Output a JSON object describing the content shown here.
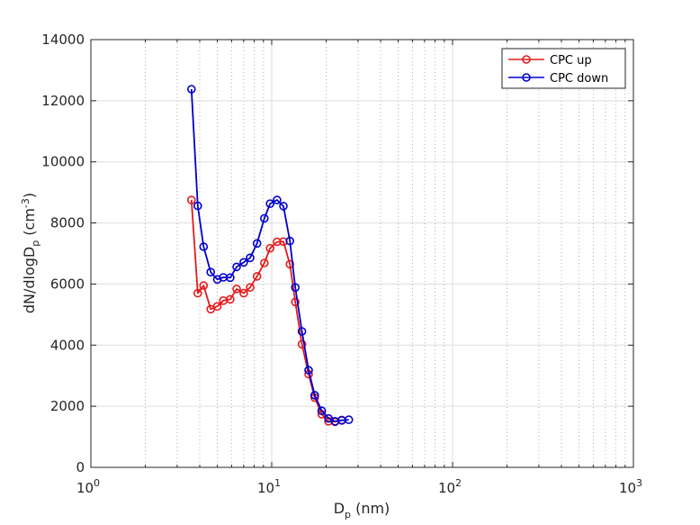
{
  "chart_data": {
    "type": "line",
    "x_scale": "log",
    "xlim": [
      1,
      1000
    ],
    "ylim": [
      0,
      14000
    ],
    "grid": true,
    "legend_position": "top-right",
    "xlabel": {
      "main": "D",
      "sub": "p",
      "tail": " (nm)"
    },
    "ylabel": {
      "main": "dN/dlogD",
      "sub": "p",
      "mid": "  (cm",
      "sup": "-3",
      "tail": ")"
    },
    "y_ticks": [
      {
        "value": 0,
        "label": "0"
      },
      {
        "value": 2000,
        "label": "2000"
      },
      {
        "value": 4000,
        "label": "4000"
      },
      {
        "value": 6000,
        "label": "6000"
      },
      {
        "value": 8000,
        "label": "8000"
      },
      {
        "value": 10000,
        "label": "10000"
      },
      {
        "value": 12000,
        "label": "12000"
      },
      {
        "value": 14000,
        "label": "14000"
      }
    ],
    "x_ticks": [
      {
        "value": 1,
        "base": "10",
        "exp": "0"
      },
      {
        "value": 10,
        "base": "10",
        "exp": "1"
      },
      {
        "value": 100,
        "base": "10",
        "exp": "2"
      },
      {
        "value": 1000,
        "base": "10",
        "exp": "3"
      }
    ],
    "x": [
      3.6,
      3.9,
      4.2,
      4.6,
      5.0,
      5.4,
      5.9,
      6.4,
      7.0,
      7.6,
      8.3,
      9.1,
      9.8,
      10.7,
      11.6,
      12.6,
      13.5,
      14.7,
      16.0,
      17.3,
      18.9,
      20.6,
      22.4,
      24.4,
      26.7
    ],
    "series": [
      {
        "name": "CPC up",
        "color": "#e31a1c",
        "values": [
          8750,
          5700,
          5950,
          5180,
          5270,
          5460,
          5500,
          5840,
          5700,
          5890,
          6250,
          6690,
          7170,
          7380,
          7390,
          6650,
          5410,
          4030,
          3050,
          2280,
          1740,
          1510,
          1490,
          1550,
          null
        ]
      },
      {
        "name": "CPC down",
        "color": "#0000cc",
        "values": [
          12380,
          8560,
          7220,
          6390,
          6150,
          6220,
          6210,
          6560,
          6710,
          6860,
          7330,
          8150,
          8630,
          8750,
          8550,
          7410,
          5890,
          4450,
          3180,
          2360,
          1850,
          1600,
          1510,
          1540,
          1560
        ]
      }
    ]
  }
}
